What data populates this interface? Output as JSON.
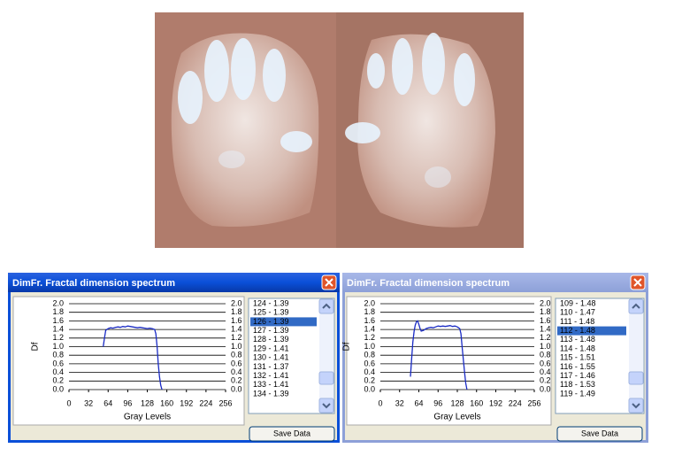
{
  "windows": [
    {
      "title": "DimFr. Fractal dimension spectrum",
      "list_items": [
        "124 - 1.39",
        "125 - 1.39",
        "126 - 1.39",
        "127 - 1.39",
        "128 - 1.39",
        "129 - 1.41",
        "130 - 1.41",
        "131 - 1.37",
        "132 - 1.41",
        "133 - 1.41",
        "134 - 1.39"
      ],
      "selected": 2,
      "button": "Save Data"
    },
    {
      "title": "DimFr. Fractal dimension spectrum",
      "list_items": [
        "109 - 1.48",
        "110 - 1.47",
        "111 - 1.48",
        "112 - 1.48",
        "113 - 1.48",
        "114 - 1.48",
        "115 - 1.51",
        "116 - 1.55",
        "117 - 1.46",
        "118 - 1.53",
        "119 - 1.49"
      ],
      "selected": 3,
      "button": "Save Data"
    }
  ],
  "chart_data": [
    {
      "type": "line",
      "x_label": "Gray Levels",
      "y_label": "Df",
      "color": "#1a2bc4",
      "x": [
        56,
        58,
        60,
        64,
        68,
        72,
        76,
        80,
        84,
        88,
        92,
        96,
        100,
        104,
        108,
        112,
        116,
        120,
        124,
        128,
        132,
        136,
        140,
        142,
        144,
        146,
        148,
        150,
        152
      ],
      "values": [
        1.0,
        1.2,
        1.38,
        1.42,
        1.44,
        1.43,
        1.45,
        1.46,
        1.45,
        1.47,
        1.46,
        1.48,
        1.47,
        1.46,
        1.45,
        1.44,
        1.45,
        1.44,
        1.43,
        1.42,
        1.43,
        1.42,
        1.4,
        1.3,
        1.0,
        0.6,
        0.3,
        0.1,
        0.0
      ],
      "xlim": [
        0,
        256
      ],
      "xticks": [
        0,
        32,
        64,
        96,
        128,
        160,
        192,
        224,
        256
      ],
      "ylim": [
        0,
        2
      ],
      "yticks": [
        {
          "value": 0,
          "label": "0.0"
        },
        0.2,
        0.4,
        0.6,
        0.8,
        {
          "value": 1,
          "label": "1.0"
        },
        1.2,
        1.4,
        1.6,
        1.8,
        {
          "value": 2,
          "label": "2.0"
        }
      ],
      "grid": true
    },
    {
      "type": "line",
      "x_label": "Gray Levels",
      "y_label": "Df",
      "color": "#1a2bc4",
      "x": [
        50,
        52,
        54,
        56,
        58,
        60,
        62,
        64,
        66,
        68,
        72,
        76,
        80,
        84,
        88,
        92,
        96,
        100,
        104,
        108,
        112,
        116,
        120,
        124,
        128,
        132,
        134,
        136,
        138,
        140,
        142,
        144
      ],
      "values": [
        0.3,
        0.7,
        1.1,
        1.35,
        1.5,
        1.58,
        1.6,
        1.52,
        1.42,
        1.36,
        1.38,
        1.42,
        1.44,
        1.45,
        1.44,
        1.46,
        1.48,
        1.47,
        1.48,
        1.47,
        1.48,
        1.49,
        1.47,
        1.48,
        1.46,
        1.42,
        1.3,
        1.0,
        0.7,
        0.4,
        0.15,
        0.0
      ],
      "xlim": [
        0,
        256
      ],
      "xticks": [
        0,
        32,
        64,
        96,
        128,
        160,
        192,
        224,
        256
      ],
      "ylim": [
        0,
        2
      ],
      "yticks": [
        {
          "value": 0,
          "label": "0.0"
        },
        0.2,
        0.4,
        0.6,
        0.8,
        {
          "value": 1,
          "label": "1.0"
        },
        1.2,
        1.4,
        1.6,
        1.8,
        {
          "value": 2,
          "label": "2.0"
        }
      ],
      "grid": true
    }
  ]
}
